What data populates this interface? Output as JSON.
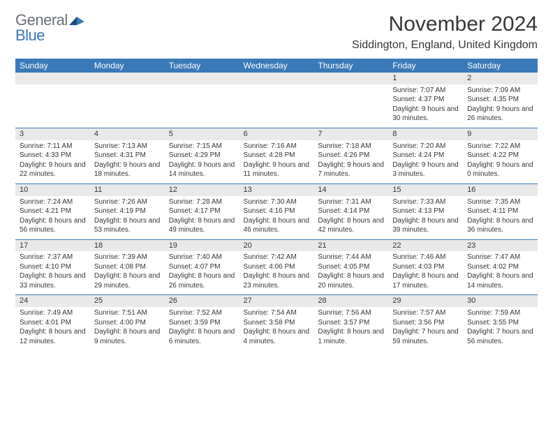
{
  "brand": {
    "text1": "General",
    "text2": "Blue"
  },
  "title": "November 2024",
  "location": "Siddington, England, United Kingdom",
  "colors": {
    "header_bg": "#3a79b7",
    "header_text": "#ffffff",
    "daynum_bg": "#e9e9e9",
    "row_border": "#3a79b7",
    "text": "#363636",
    "logo_gray": "#6c7076",
    "logo_blue": "#3a79b7"
  },
  "weekdays": [
    "Sunday",
    "Monday",
    "Tuesday",
    "Wednesday",
    "Thursday",
    "Friday",
    "Saturday"
  ],
  "weeks": [
    [
      null,
      null,
      null,
      null,
      null,
      {
        "n": "1",
        "sr": "7:07 AM",
        "ss": "4:37 PM",
        "dl": "9 hours and 30 minutes."
      },
      {
        "n": "2",
        "sr": "7:09 AM",
        "ss": "4:35 PM",
        "dl": "9 hours and 26 minutes."
      }
    ],
    [
      {
        "n": "3",
        "sr": "7:11 AM",
        "ss": "4:33 PM",
        "dl": "9 hours and 22 minutes."
      },
      {
        "n": "4",
        "sr": "7:13 AM",
        "ss": "4:31 PM",
        "dl": "9 hours and 18 minutes."
      },
      {
        "n": "5",
        "sr": "7:15 AM",
        "ss": "4:29 PM",
        "dl": "9 hours and 14 minutes."
      },
      {
        "n": "6",
        "sr": "7:16 AM",
        "ss": "4:28 PM",
        "dl": "9 hours and 11 minutes."
      },
      {
        "n": "7",
        "sr": "7:18 AM",
        "ss": "4:26 PM",
        "dl": "9 hours and 7 minutes."
      },
      {
        "n": "8",
        "sr": "7:20 AM",
        "ss": "4:24 PM",
        "dl": "9 hours and 3 minutes."
      },
      {
        "n": "9",
        "sr": "7:22 AM",
        "ss": "4:22 PM",
        "dl": "9 hours and 0 minutes."
      }
    ],
    [
      {
        "n": "10",
        "sr": "7:24 AM",
        "ss": "4:21 PM",
        "dl": "8 hours and 56 minutes."
      },
      {
        "n": "11",
        "sr": "7:26 AM",
        "ss": "4:19 PM",
        "dl": "8 hours and 53 minutes."
      },
      {
        "n": "12",
        "sr": "7:28 AM",
        "ss": "4:17 PM",
        "dl": "8 hours and 49 minutes."
      },
      {
        "n": "13",
        "sr": "7:30 AM",
        "ss": "4:16 PM",
        "dl": "8 hours and 46 minutes."
      },
      {
        "n": "14",
        "sr": "7:31 AM",
        "ss": "4:14 PM",
        "dl": "8 hours and 42 minutes."
      },
      {
        "n": "15",
        "sr": "7:33 AM",
        "ss": "4:13 PM",
        "dl": "8 hours and 39 minutes."
      },
      {
        "n": "16",
        "sr": "7:35 AM",
        "ss": "4:11 PM",
        "dl": "8 hours and 36 minutes."
      }
    ],
    [
      {
        "n": "17",
        "sr": "7:37 AM",
        "ss": "4:10 PM",
        "dl": "8 hours and 33 minutes."
      },
      {
        "n": "18",
        "sr": "7:39 AM",
        "ss": "4:08 PM",
        "dl": "8 hours and 29 minutes."
      },
      {
        "n": "19",
        "sr": "7:40 AM",
        "ss": "4:07 PM",
        "dl": "8 hours and 26 minutes."
      },
      {
        "n": "20",
        "sr": "7:42 AM",
        "ss": "4:06 PM",
        "dl": "8 hours and 23 minutes."
      },
      {
        "n": "21",
        "sr": "7:44 AM",
        "ss": "4:05 PM",
        "dl": "8 hours and 20 minutes."
      },
      {
        "n": "22",
        "sr": "7:46 AM",
        "ss": "4:03 PM",
        "dl": "8 hours and 17 minutes."
      },
      {
        "n": "23",
        "sr": "7:47 AM",
        "ss": "4:02 PM",
        "dl": "8 hours and 14 minutes."
      }
    ],
    [
      {
        "n": "24",
        "sr": "7:49 AM",
        "ss": "4:01 PM",
        "dl": "8 hours and 12 minutes."
      },
      {
        "n": "25",
        "sr": "7:51 AM",
        "ss": "4:00 PM",
        "dl": "8 hours and 9 minutes."
      },
      {
        "n": "26",
        "sr": "7:52 AM",
        "ss": "3:59 PM",
        "dl": "8 hours and 6 minutes."
      },
      {
        "n": "27",
        "sr": "7:54 AM",
        "ss": "3:58 PM",
        "dl": "8 hours and 4 minutes."
      },
      {
        "n": "28",
        "sr": "7:56 AM",
        "ss": "3:57 PM",
        "dl": "8 hours and 1 minute."
      },
      {
        "n": "29",
        "sr": "7:57 AM",
        "ss": "3:56 PM",
        "dl": "7 hours and 59 minutes."
      },
      {
        "n": "30",
        "sr": "7:59 AM",
        "ss": "3:55 PM",
        "dl": "7 hours and 56 minutes."
      }
    ]
  ],
  "labels": {
    "sunrise": "Sunrise:",
    "sunset": "Sunset:",
    "daylight": "Daylight:"
  }
}
